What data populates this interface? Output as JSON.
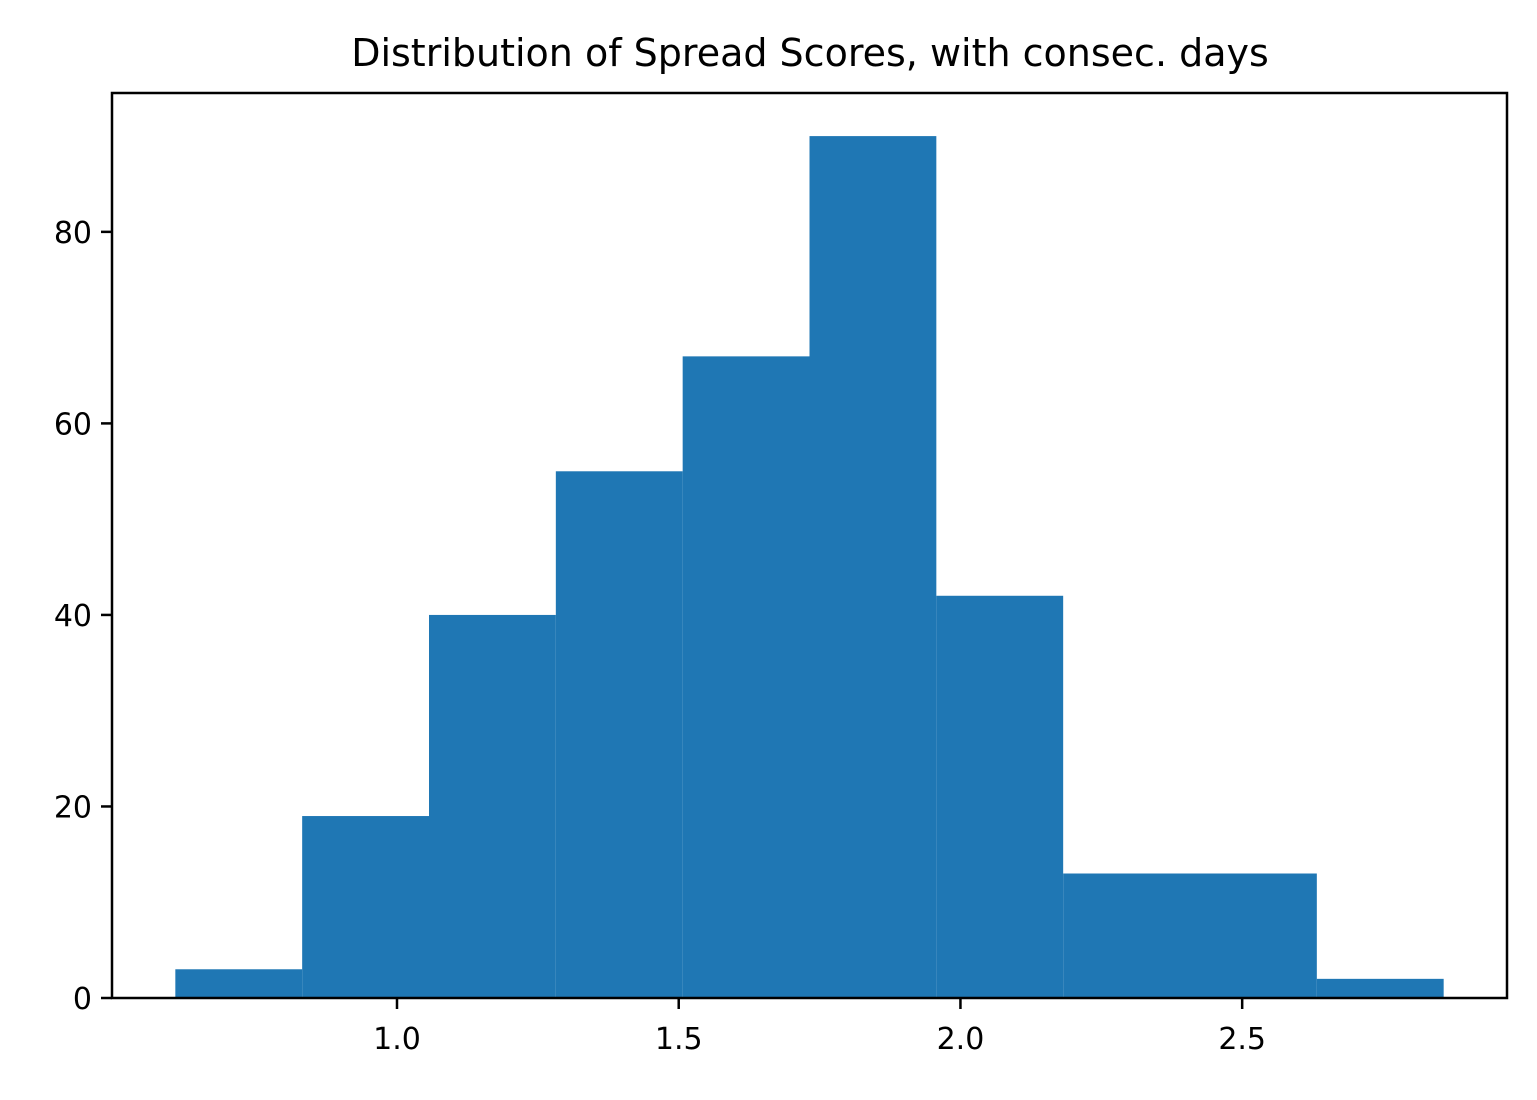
{
  "chart_data": {
    "type": "bar",
    "title": "Distribution of Spread Scores, with consec. days",
    "xlabel": "",
    "ylabel": "",
    "bin_edges": [
      0.6066,
      0.8317,
      1.0568,
      1.2819,
      1.507,
      1.7321,
      1.9572,
      2.1823,
      2.4074,
      2.6325,
      2.8576
    ],
    "values": [
      3,
      19,
      40,
      55,
      67,
      90,
      42,
      13,
      13,
      2
    ],
    "xlim": [
      0.4942,
      2.97
    ],
    "ylim": [
      0,
      94.5
    ],
    "xticks": [
      1.0,
      1.5,
      2.0,
      2.5
    ],
    "xtick_labels": [
      "1.0",
      "1.5",
      "2.0",
      "2.5"
    ],
    "yticks": [
      0,
      20,
      40,
      60,
      80
    ],
    "ytick_labels": [
      "0",
      "20",
      "40",
      "60",
      "80"
    ],
    "bar_color": "#1f77b4",
    "grid": false,
    "legend": "none"
  }
}
